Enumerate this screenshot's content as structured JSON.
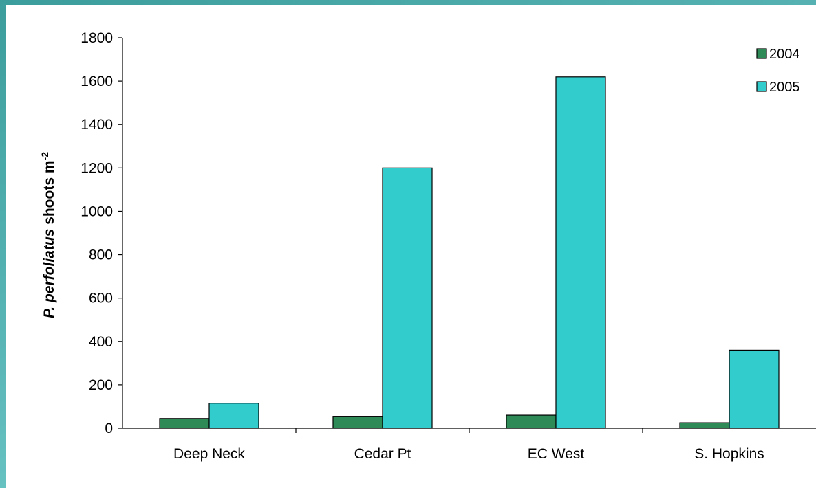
{
  "chart_data": {
    "type": "bar",
    "title": "",
    "xlabel": "",
    "ylabel_italic": "P. perfoliatus",
    "ylabel_rest": " shoots m",
    "ylabel_superscript": "-2",
    "categories": [
      "Deep Neck",
      "Cedar Pt",
      "EC West",
      "S. Hopkins"
    ],
    "series": [
      {
        "name": "2004",
        "color": "#2e8b57",
        "values": [
          45,
          55,
          60,
          25
        ]
      },
      {
        "name": "2005",
        "color": "#33cccc",
        "values": [
          115,
          1200,
          1620,
          360
        ]
      }
    ],
    "ylim": [
      0,
      1800
    ],
    "yticks": [
      "0",
      "200",
      "400",
      "600",
      "800",
      "1000",
      "1200",
      "1400",
      "1600",
      "1800"
    ],
    "grid": false,
    "legend_position": "top-right"
  },
  "frame": {
    "background": "#4aa7a7"
  }
}
